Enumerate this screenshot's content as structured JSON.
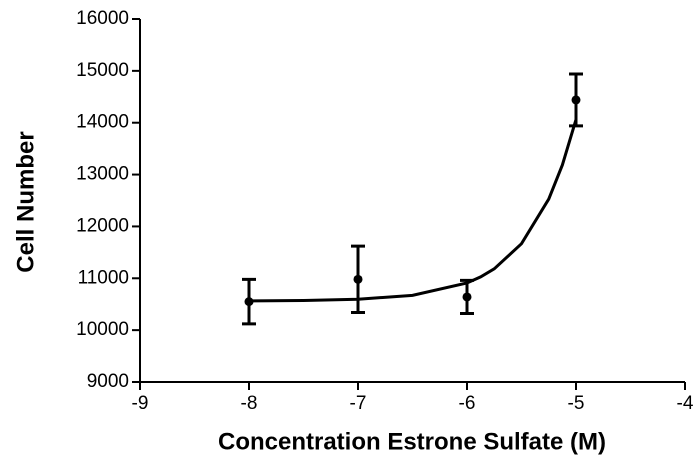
{
  "chart_data": {
    "type": "scatter",
    "xlabel": "Concentration Estrone Sulfate (M)",
    "ylabel": "Cell Number",
    "color": "#000000",
    "points": {
      "x": [
        -8,
        -7,
        -6,
        -5
      ],
      "y": [
        10550,
        10980,
        10640,
        14440
      ],
      "errors": [
        430,
        640,
        320,
        500
      ]
    },
    "fit": {
      "x": [
        -8,
        -7.5,
        -7,
        -6.5,
        -6,
        -5.875,
        -5.75,
        -5.5,
        -5.25,
        -5.125,
        -5
      ],
      "y": [
        10564,
        10571,
        10595,
        10671,
        10910,
        11027,
        11182,
        11667,
        12528,
        13185,
        14060
      ]
    },
    "xlim": [
      -9,
      -4
    ],
    "xticks": [
      -9,
      -8,
      -7,
      -6,
      -5,
      -4
    ],
    "ylim": [
      9000,
      16000
    ],
    "yticks": [
      9000,
      10000,
      11000,
      12000,
      13000,
      14000,
      15000,
      16000
    ]
  }
}
